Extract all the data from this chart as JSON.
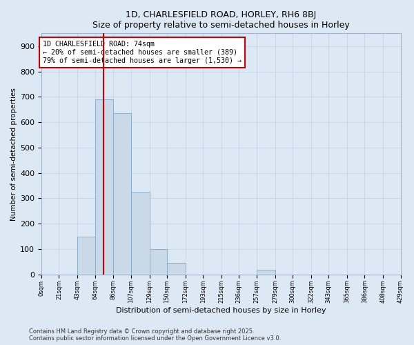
{
  "title1": "1D, CHARLESFIELD ROAD, HORLEY, RH6 8BJ",
  "title2": "Size of property relative to semi-detached houses in Horley",
  "xlabel": "Distribution of semi-detached houses by size in Horley",
  "ylabel": "Number of semi-detached properties",
  "bin_edges": [
    0,
    21,
    43,
    64,
    86,
    107,
    129,
    150,
    172,
    193,
    215,
    236,
    257,
    279,
    300,
    322,
    343,
    365,
    386,
    408,
    429
  ],
  "bin_labels": [
    "0sqm",
    "21sqm",
    "43sqm",
    "64sqm",
    "86sqm",
    "107sqm",
    "129sqm",
    "150sqm",
    "172sqm",
    "193sqm",
    "215sqm",
    "236sqm",
    "257sqm",
    "279sqm",
    "300sqm",
    "322sqm",
    "343sqm",
    "365sqm",
    "386sqm",
    "408sqm",
    "429sqm"
  ],
  "counts": [
    0,
    0,
    150,
    690,
    635,
    325,
    100,
    45,
    0,
    0,
    0,
    0,
    18,
    0,
    0,
    0,
    0,
    0,
    0,
    0
  ],
  "property_sqm": 74,
  "bar_color": "#c9d9e8",
  "bar_edgecolor": "#8ab0cc",
  "vline_color": "#cc0000",
  "annotation_text": "1D CHARLESFIELD ROAD: 74sqm\n← 20% of semi-detached houses are smaller (389)\n79% of semi-detached houses are larger (1,530) →",
  "annotation_box_edgecolor": "#cc0000",
  "annotation_box_facecolor": "#ffffff",
  "ylim": [
    0,
    950
  ],
  "yticks": [
    0,
    100,
    200,
    300,
    400,
    500,
    600,
    700,
    800,
    900
  ],
  "footer1": "Contains HM Land Registry data © Crown copyright and database right 2025.",
  "footer2": "Contains public sector information licensed under the Open Government Licence v3.0.",
  "bg_color": "#dde8f5"
}
